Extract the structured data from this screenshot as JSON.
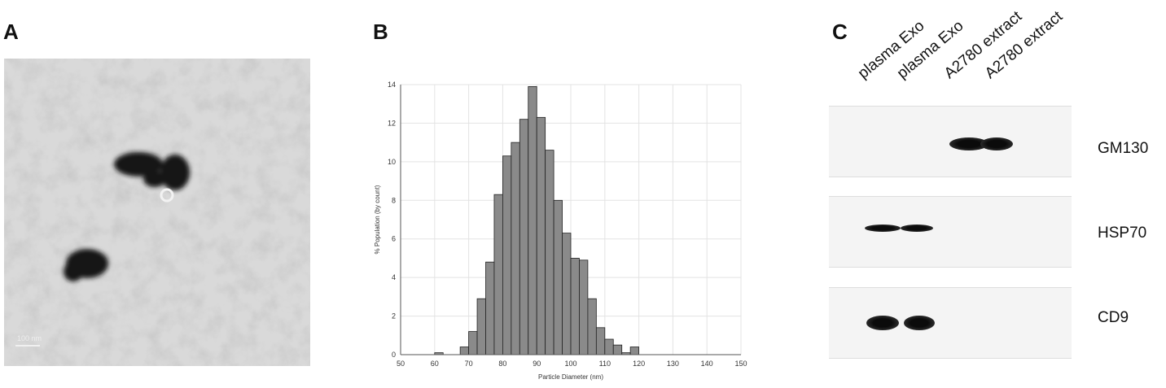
{
  "panels": {
    "a": "A",
    "b": "B",
    "c": "C"
  },
  "panel_a": {
    "scale_bar": "100 nm"
  },
  "chart_data": {
    "type": "bar",
    "title": "",
    "xlabel": "Particle Diameter (nm)",
    "ylabel": "% Population (by count)",
    "xlim": [
      50,
      150
    ],
    "ylim": [
      0,
      14
    ],
    "xticks": [
      50,
      60,
      70,
      80,
      90,
      100,
      110,
      120,
      130,
      140,
      150
    ],
    "yticks": [
      0,
      2,
      4,
      6,
      8,
      10,
      12,
      14
    ],
    "grid": true,
    "bin_width": 2.5,
    "bin_left_edges": [
      60,
      67.5,
      70,
      72.5,
      75,
      77.5,
      80,
      82.5,
      85,
      87.5,
      90,
      92.5,
      95,
      97.5,
      100,
      102.5,
      105,
      107.5,
      110,
      112.5,
      115,
      117.5,
      120,
      122.5,
      125,
      127.5,
      130
    ],
    "values": [
      0.1,
      0.4,
      1.2,
      2.9,
      4.8,
      8.3,
      10.3,
      11.0,
      12.2,
      13.9,
      12.3,
      10.6,
      8.0,
      6.3,
      5.0,
      4.9,
      2.9,
      1.4,
      0.8,
      0.5,
      0.1,
      0.4,
      0.0,
      0.0,
      0.0,
      0.0,
      0.0
    ],
    "color": "#8a8a8a"
  },
  "western_blot": {
    "lanes": [
      "plasma Exo",
      "plasma Exo",
      "A2780 extract",
      "A2780 extract"
    ],
    "markers": [
      "GM130",
      "HSP70",
      "CD9"
    ]
  }
}
